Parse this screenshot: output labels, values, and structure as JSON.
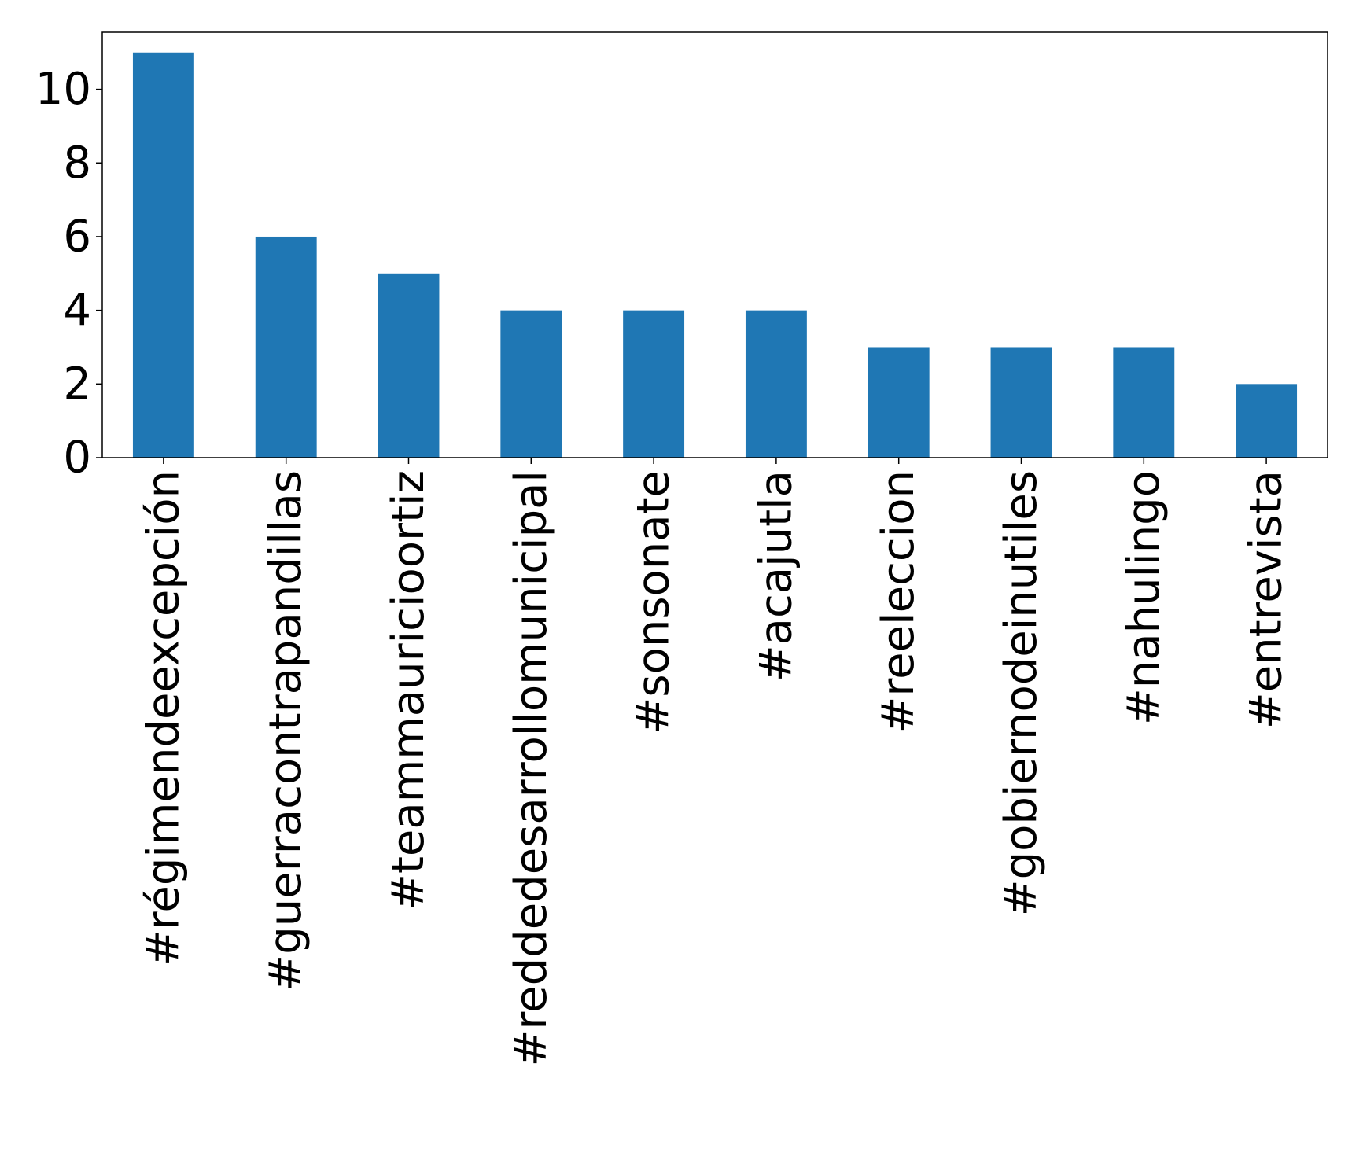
{
  "chart_data": {
    "type": "bar",
    "categories": [
      "#régimendeexcepción",
      "#guerracontrapandillas",
      "#teammauricioortiz",
      "#reddedesarrollomunicipal",
      "#sonsonate",
      "#acajutla",
      "#reeleccion",
      "#gobiernodeinutiles",
      "#nahulingo",
      "#entrevista"
    ],
    "values": [
      11,
      6,
      5,
      4,
      4,
      4,
      3,
      3,
      3,
      2
    ],
    "title": "",
    "xlabel": "",
    "ylabel": "",
    "ylim": [
      0,
      11.55
    ],
    "yticks": [
      0,
      2,
      4,
      6,
      8,
      10
    ],
    "grid": false,
    "colors": {
      "bar": "#1f77b4",
      "axis": "#000000",
      "background": "#ffffff"
    }
  }
}
